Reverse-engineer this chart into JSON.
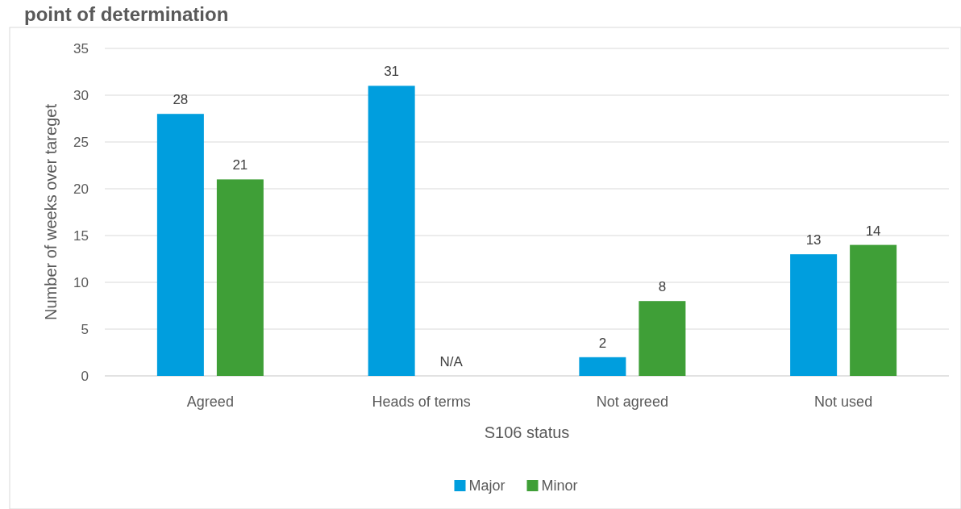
{
  "chart_data": {
    "type": "bar",
    "title": "point of determination",
    "xlabel": "S106 status",
    "ylabel": "Number of weeks over tareget",
    "categories": [
      "Agreed",
      "Heads of terms",
      "Not agreed",
      "Not used"
    ],
    "series": [
      {
        "name": "Major",
        "color": "#009ede",
        "values": [
          28,
          31,
          2,
          13
        ],
        "value_labels": [
          "28",
          "31",
          "2",
          "13"
        ]
      },
      {
        "name": "Minor",
        "color": "#3f9f37",
        "values": [
          21,
          null,
          8,
          14
        ],
        "value_labels": [
          "21",
          "N/A",
          "8",
          "14"
        ]
      }
    ],
    "ylim": [
      0,
      35
    ],
    "yticks": [
      0,
      5,
      10,
      15,
      20,
      25,
      30,
      35
    ],
    "grid": "y",
    "legend": "bottom"
  }
}
